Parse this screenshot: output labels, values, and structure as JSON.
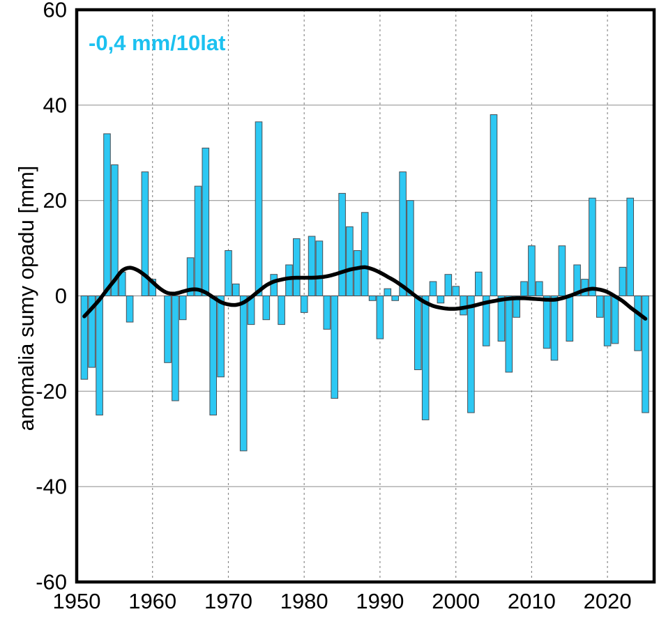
{
  "annotation": {
    "text": "-0,4 mm/10lat",
    "color": "#1cc1f0"
  },
  "y_axis": {
    "title": "anomalia sumy opadu [mm]",
    "tick_labels": [
      "60",
      "40",
      "20",
      "0",
      "-20",
      "-40",
      "-60"
    ],
    "tick_values": [
      60,
      40,
      20,
      0,
      -20,
      -40,
      -60
    ]
  },
  "x_axis": {
    "tick_labels": [
      "1950",
      "1960",
      "1970",
      "1980",
      "1990",
      "2000",
      "2010",
      "2020"
    ],
    "tick_values": [
      1950,
      1960,
      1970,
      1980,
      1990,
      2000,
      2010,
      2020
    ]
  },
  "chart_data": {
    "type": "bar",
    "title": "",
    "xlabel": "",
    "ylabel": "anomalia sumy opadu [mm]",
    "ylim": [
      -60,
      60
    ],
    "xlim": [
      1950,
      2026
    ],
    "grid": {
      "horizontal": "solid gray every 20 mm",
      "vertical": "dashed gray at each decade 1960-2020"
    },
    "legend_position": "none",
    "annotation": "-0,4 mm/10lat (trend, mm per decade)",
    "trend_slope_mm_per_decade": -0.4,
    "bar_color": "#2dc8f3",
    "bar_outline_color": "#4a4e54",
    "trend_line_color": "#000000",
    "gridline_color": "#999999",
    "years": [
      1951,
      1952,
      1953,
      1954,
      1955,
      1956,
      1957,
      1958,
      1959,
      1960,
      1961,
      1962,
      1963,
      1964,
      1965,
      1966,
      1967,
      1968,
      1969,
      1970,
      1971,
      1972,
      1973,
      1974,
      1975,
      1976,
      1977,
      1978,
      1979,
      1980,
      1981,
      1982,
      1983,
      1984,
      1985,
      1986,
      1987,
      1988,
      1989,
      1990,
      1991,
      1992,
      1993,
      1994,
      1995,
      1996,
      1997,
      1998,
      1999,
      2000,
      2001,
      2002,
      2003,
      2004,
      2005,
      2006,
      2007,
      2008,
      2009,
      2010,
      2011,
      2012,
      2013,
      2014,
      2015,
      2016,
      2017,
      2018,
      2019,
      2020,
      2021,
      2022,
      2023,
      2024,
      2025
    ],
    "values": [
      -17.5,
      -15,
      -25,
      34,
      27.5,
      5,
      -5.5,
      0,
      26,
      3.5,
      0,
      -14,
      -22,
      -5,
      8,
      23,
      31,
      -25,
      -17,
      9.5,
      2.5,
      -32.5,
      -6,
      36.5,
      -5,
      4.5,
      -6,
      6.5,
      12,
      -3.5,
      12.5,
      11.5,
      -7,
      -21.5,
      21.5,
      14.5,
      9.5,
      17.5,
      -1,
      -9,
      1.5,
      -1,
      26,
      20,
      -15.5,
      -26,
      3,
      -1.5,
      4.5,
      2,
      -4,
      -24.5,
      5,
      -10.5,
      38,
      -9.5,
      -16,
      -4.5,
      3,
      10.5,
      3,
      -11,
      -13.5,
      10.5,
      -9.5,
      6.5,
      3.5,
      20.5,
      -4.5,
      -10.5,
      -10,
      6,
      20.5,
      -11.5,
      -24.5
    ],
    "trend_smoothed": [
      -4.3,
      -2.6,
      -0.8,
      1.3,
      3.3,
      5.3,
      5.9,
      5.4,
      4.3,
      2.9,
      1.5,
      0.6,
      0.5,
      0.9,
      1.3,
      1.3,
      0.7,
      -0.3,
      -1.3,
      -1.8,
      -1.9,
      -1.4,
      -0.3,
      1.0,
      2.2,
      3.0,
      3.4,
      3.7,
      3.8,
      3.8,
      3.8,
      3.9,
      4.1,
      4.5,
      5.0,
      5.5,
      5.8,
      6.0,
      5.6,
      4.9,
      4.0,
      3.1,
      2.0,
      0.8,
      -0.4,
      -1.4,
      -2.1,
      -2.5,
      -2.7,
      -2.7,
      -2.5,
      -2.2,
      -1.8,
      -1.4,
      -1.1,
      -0.8,
      -0.6,
      -0.5,
      -0.5,
      -0.6,
      -0.7,
      -0.8,
      -0.8,
      -0.5,
      0.0,
      0.6,
      1.2,
      1.5,
      1.3,
      0.8,
      -0.1,
      -1.1,
      -2.4,
      -3.6,
      -4.8
    ]
  }
}
